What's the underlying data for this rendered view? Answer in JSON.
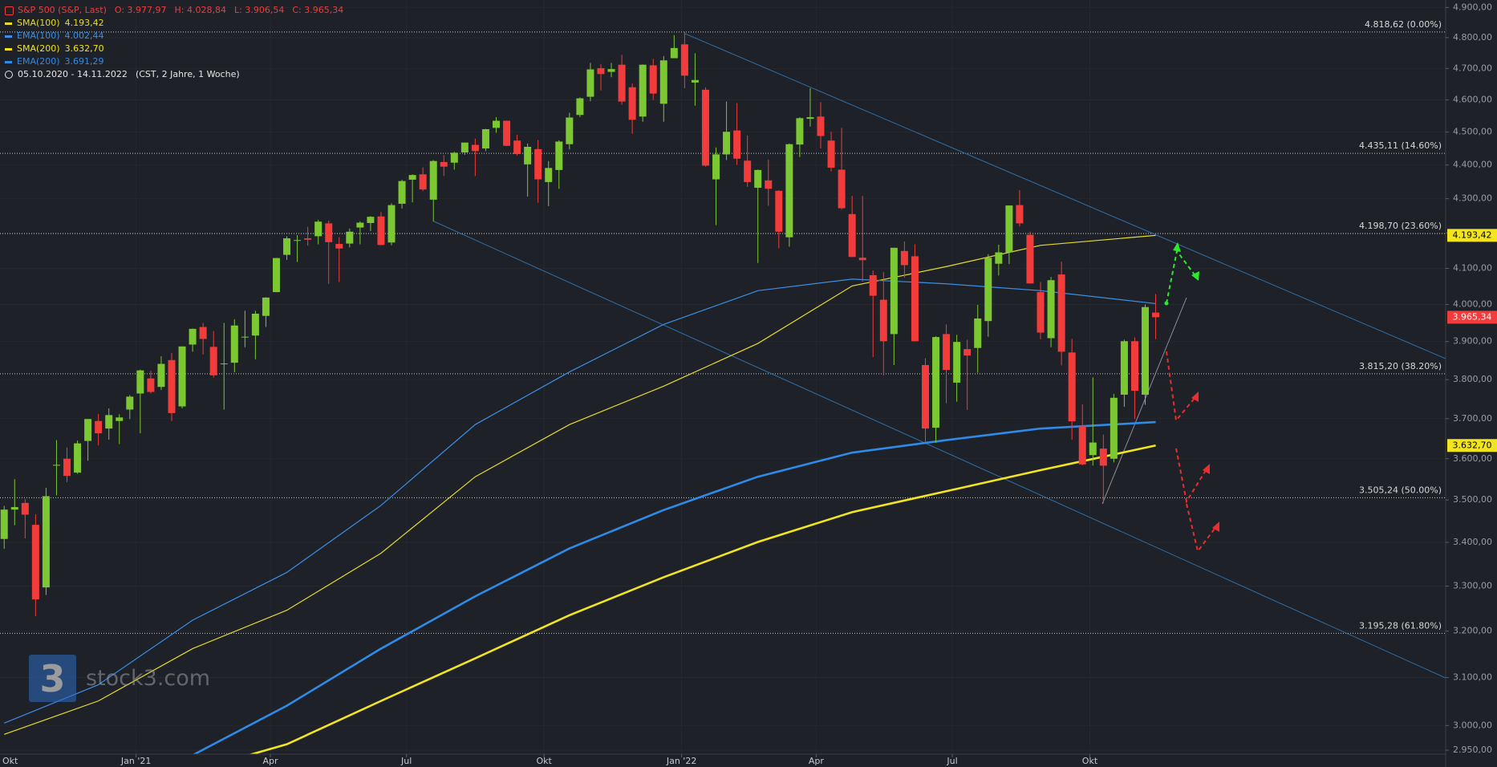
{
  "chart_data": {
    "type": "candlestick",
    "title": "S&P 500 (S&P, Last)",
    "ohlc_labels": [
      "O: 3.977,97",
      "H: 4.028,84",
      "L: 3.906,54",
      "C: 3.965,34"
    ],
    "date_range": "05.10.2020 - 14.11.2022",
    "range_note": "(CST, 2 Jahre, 1 Woche)",
    "watermark": {
      "logo": "3",
      "text": "stock3.com"
    },
    "up_color": "#7cc832",
    "down_color": "#f23b3b",
    "log_y": true,
    "grid": true,
    "xlim": [
      -0.4,
      137.7
    ],
    "ylim": [
      2942,
      4925
    ],
    "xticks": [
      {
        "value": -0.57,
        "label": "Okt"
      },
      {
        "value": 12.6,
        "label": "Jan '21"
      },
      {
        "value": 25.43,
        "label": "Apr"
      },
      {
        "value": 38.43,
        "label": "Jul"
      },
      {
        "value": 51.57,
        "label": "Okt"
      },
      {
        "value": 64.71,
        "label": "Jan '22"
      },
      {
        "value": 77.57,
        "label": "Apr"
      },
      {
        "value": 90.57,
        "label": "Jul"
      },
      {
        "value": 103.71,
        "label": "Okt"
      }
    ],
    "yticks": [
      {
        "value": 2950,
        "label": "2.950,00"
      },
      {
        "value": 3000,
        "label": "3.000,00"
      },
      {
        "value": 3100,
        "label": "3.100,00"
      },
      {
        "value": 3200,
        "label": "3.200,00"
      },
      {
        "value": 3300,
        "label": "3.300,00"
      },
      {
        "value": 3400,
        "label": "3.400,00"
      },
      {
        "value": 3500,
        "label": "3.500,00"
      },
      {
        "value": 3600,
        "label": "3.600,00"
      },
      {
        "value": 3700,
        "label": "3.700,00"
      },
      {
        "value": 3800,
        "label": "3.800,00"
      },
      {
        "value": 3900,
        "label": "3.900,00"
      },
      {
        "value": 4000,
        "label": "4.000,00"
      },
      {
        "value": 4100,
        "label": "4.100,00"
      },
      {
        "value": 4200,
        "label": "4.200,00"
      },
      {
        "value": 4300,
        "label": "4.300,00"
      },
      {
        "value": 4400,
        "label": "4.400,00"
      },
      {
        "value": 4500,
        "label": "4.500,00"
      },
      {
        "value": 4600,
        "label": "4.600,00"
      },
      {
        "value": 4700,
        "label": "4.700,00"
      },
      {
        "value": 4800,
        "label": "4.800,00"
      },
      {
        "value": 4900,
        "label": "4.900,00"
      }
    ],
    "open": [
      3408,
      3477,
      3493,
      3441,
      3297,
      3583,
      3600,
      3566,
      3644,
      3694,
      3675,
      3694,
      3723,
      3764,
      3803,
      3781,
      3851,
      3731,
      3892,
      3939,
      3886,
      3842,
      3844,
      3913,
      3916,
      3969,
      4034,
      4138,
      4179,
      4185,
      4191,
      4228,
      4169,
      4170,
      4216,
      4229,
      4248,
      4173,
      4285,
      4356,
      4372,
      4297,
      4409,
      4407,
      4438,
      4461,
      4450,
      4513,
      4535,
      4474,
      4402,
      4448,
      4349,
      4385,
      4463,
      4553,
      4610,
      4701,
      4689,
      4712,
      4640,
      4548,
      4710,
      4588,
      4733,
      4778,
      4655,
      4632,
      4357,
      4432,
      4505,
      4413,
      4332,
      4354,
      4323,
      4188,
      4462,
      4541,
      4548,
      4474,
      4386,
      4255,
      4130,
      4081,
      4013,
      3920,
      4149,
      4134,
      3838,
      3677,
      3920,
      3792,
      3880,
      3883,
      3955,
      4113,
      4145,
      4281,
      4195,
      4034,
      3909,
      4083,
      3871,
      3682,
      3609,
      3625,
      3600,
      3761,
      3901,
      3761,
      3977.97
    ],
    "high": [
      3486,
      3550,
      3502,
      3466,
      3529,
      3646,
      3628,
      3645,
      3699,
      3712,
      3726,
      3711,
      3760,
      3826,
      3823,
      3861,
      3870,
      3887,
      3935,
      3950,
      3928,
      3950,
      3960,
      3983,
      3983,
      4020,
      4129,
      4191,
      4194,
      4218,
      4238,
      4236,
      4188,
      4213,
      4234,
      4249,
      4261,
      4286,
      4356,
      4372,
      4393,
      4415,
      4430,
      4440,
      4468,
      4480,
      4510,
      4546,
      4536,
      4492,
      4465,
      4476,
      4412,
      4475,
      4560,
      4608,
      4718,
      4714,
      4718,
      4744,
      4652,
      4713,
      4731,
      4740,
      4808,
      4819,
      4749,
      4640,
      4453,
      4595,
      4590,
      4490,
      4386,
      4416,
      4325,
      4465,
      4546,
      4637,
      4593,
      4501,
      4513,
      4308,
      4308,
      4094,
      4090,
      4158,
      4176,
      4168,
      3856,
      3914,
      3946,
      3918,
      3905,
      3999,
      4140,
      4167,
      4280,
      4325,
      4204,
      4062,
      4076,
      4119,
      3907,
      3736,
      3806,
      3660,
      3763,
      3905,
      3911,
      4000,
      4028.84
    ],
    "low": [
      3385,
      3440,
      3409,
      3233,
      3280,
      3511,
      3543,
      3563,
      3595,
      3633,
      3647,
      3636,
      3699,
      3663,
      3764,
      3773,
      3694,
      3726,
      3873,
      3866,
      3805,
      3723,
      3819,
      3885,
      3853,
      3939,
      4034,
      4124,
      4118,
      4164,
      4168,
      4057,
      4062,
      4159,
      4168,
      4206,
      4165,
      4165,
      4271,
      4289,
      4322,
      4233,
      4367,
      4386,
      4431,
      4367,
      4442,
      4498,
      4457,
      4428,
      4306,
      4288,
      4278,
      4329,
      4447,
      4546,
      4596,
      4630,
      4672,
      4585,
      4495,
      4532,
      4600,
      4532,
      4733,
      4637,
      4582,
      4395,
      4223,
      4415,
      4401,
      4335,
      4115,
      4279,
      4157,
      4161,
      4424,
      4517,
      4450,
      4381,
      4268,
      4132,
      4063,
      3859,
      3811,
      3838,
      4074,
      3900,
      3637,
      3639,
      3739,
      3743,
      3722,
      3818,
      3913,
      4080,
      4112,
      4219,
      4057,
      3906,
      3885,
      3837,
      3647,
      3584,
      3583,
      3492,
      3591,
      3730,
      3699,
      3735,
      3906.54
    ],
    "close": [
      3477,
      3483,
      3465,
      3270,
      3509,
      3585,
      3558,
      3638,
      3699,
      3663,
      3709,
      3703,
      3756,
      3824,
      3768,
      3841,
      3714,
      3887,
      3934,
      3907,
      3811,
      3842,
      3943,
      3913,
      3975,
      4019,
      4129,
      4185,
      4180,
      4181,
      4233,
      4174,
      4156,
      4204,
      4230,
      4247,
      4166,
      4281,
      4352,
      4370,
      4327,
      4412,
      4395,
      4437,
      4468,
      4442,
      4509,
      4535,
      4458,
      4433,
      4455,
      4357,
      4391,
      4471,
      4545,
      4605,
      4697,
      4682,
      4698,
      4595,
      4538,
      4712,
      4620,
      4726,
      4766,
      4677,
      4663,
      4398,
      4432,
      4501,
      4419,
      4349,
      4385,
      4329,
      4204,
      4463,
      4543,
      4546,
      4488,
      4392,
      4272,
      4132,
      4123,
      4024,
      3901,
      4158,
      4109,
      3901,
      3675,
      3912,
      3825,
      3899,
      3863,
      3962,
      4130,
      4145,
      4280,
      4228,
      4058,
      3924,
      4067,
      3873,
      3693,
      3586,
      3640,
      3583,
      3753,
      3901,
      3771,
      3993,
      3965.34
    ],
    "lines": [
      {
        "name": "SMA(100)",
        "value_label": "4.193,42",
        "color": "#e6dc2a",
        "line_width": 1.2,
        "x": [
          0,
          9,
          18,
          27,
          36,
          45,
          54,
          63,
          72,
          81,
          90,
          99,
          110
        ],
        "values": [
          2982,
          3051,
          3162,
          3246,
          3375,
          3556,
          3685,
          3783,
          3895,
          4051,
          4105,
          4165,
          4193.42
        ]
      },
      {
        "name": "EMA(100)",
        "value_label": "4.002,44",
        "color": "#3b8fe6",
        "line_width": 1.2,
        "x": [
          0,
          9,
          18,
          27,
          36,
          45,
          54,
          63,
          72,
          81,
          90,
          99,
          110
        ],
        "values": [
          3005,
          3085,
          3224,
          3331,
          3487,
          3685,
          3820,
          3946,
          4038,
          4070,
          4057,
          4038,
          4002.44
        ]
      },
      {
        "name": "SMA(200)",
        "value_label": "3.632,70",
        "color": "#f2e41e",
        "line_width": 2.6,
        "x": [
          20,
          27,
          36,
          45,
          54,
          63,
          72,
          81,
          90,
          99,
          110
        ],
        "values": [
          2920,
          2962,
          3051,
          3141,
          3235,
          3320,
          3401,
          3471,
          3521,
          3572,
          3632.7
        ]
      },
      {
        "name": "EMA(200)",
        "value_label": "3.691,29",
        "color": "#2f8be8",
        "line_width": 2.6,
        "x": [
          16,
          27,
          36,
          45,
          54,
          63,
          72,
          81,
          90,
          99,
          110
        ],
        "values": [
          2918,
          3041,
          3162,
          3277,
          3386,
          3476,
          3556,
          3615,
          3646,
          3675,
          3691.29
        ]
      }
    ],
    "fib_levels": [
      {
        "value": 4818.62,
        "label": "4.818,62 (0.00%)"
      },
      {
        "value": 4435.11,
        "label": "4.435,11 (14.60%)"
      },
      {
        "value": 4198.7,
        "label": "4.198,70 (23.60%)"
      },
      {
        "value": 3815.2,
        "label": "3.815,20 (38.20%)"
      },
      {
        "value": 3505.24,
        "label": "3.505,24 (50.00%)"
      },
      {
        "value": 3195.28,
        "label": "3.195,28 (61.80%)"
      }
    ],
    "axis_markers": [
      {
        "value": 4193.42,
        "label": "4.193,42",
        "color": "#f2e41e",
        "text_color": "#000000"
      },
      {
        "value": 3965.34,
        "label": "3.965,34",
        "color": "#f23b3b",
        "text_color": "#ffffff"
      },
      {
        "value": 3632.7,
        "label": "3.632,70",
        "color": "#f2e41e",
        "text_color": "#000000"
      }
    ]
  }
}
